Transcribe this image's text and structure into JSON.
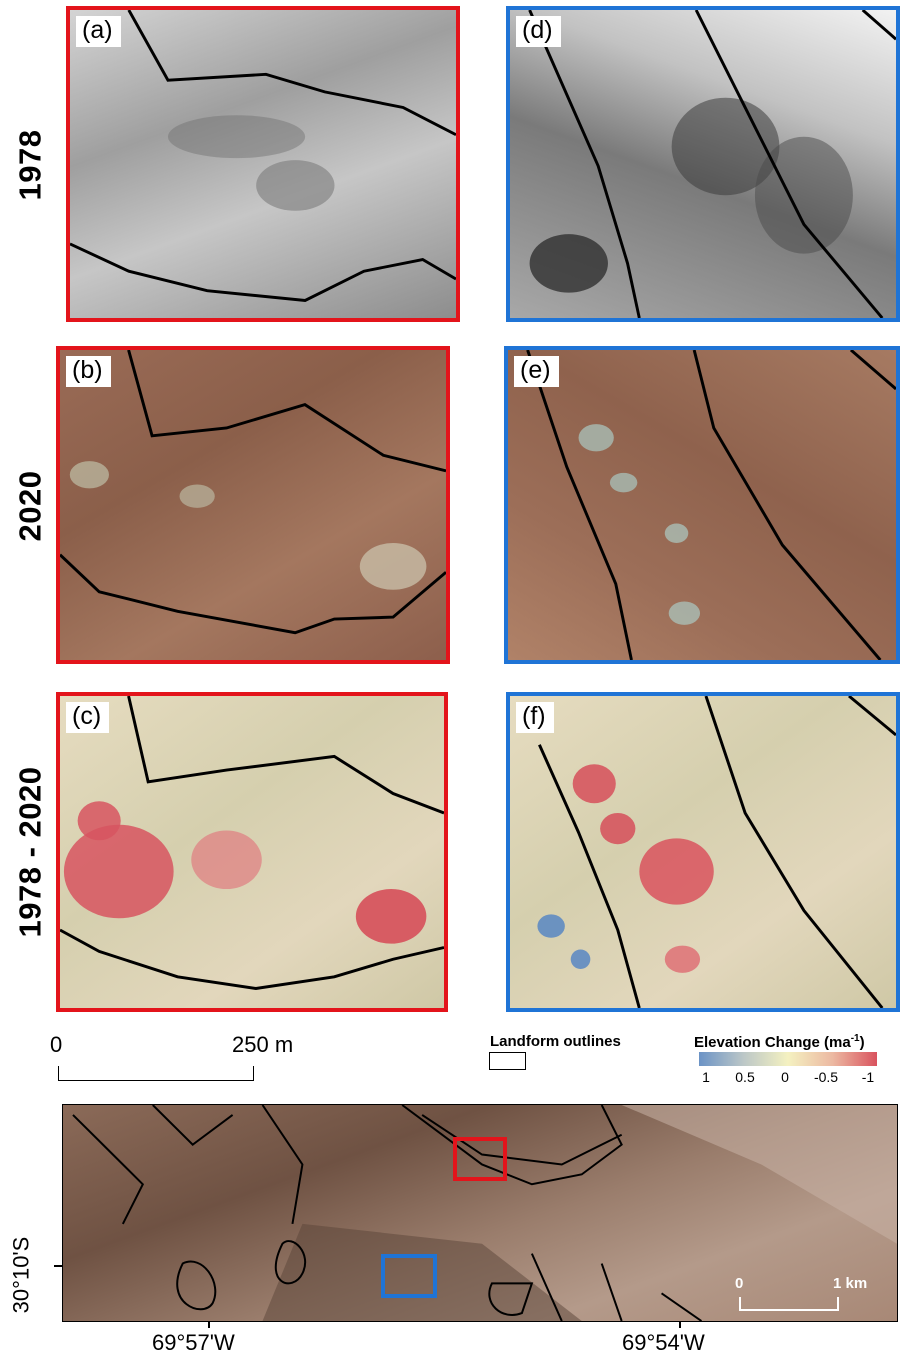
{
  "rows": [
    {
      "label": "1978"
    },
    {
      "label": "2020"
    },
    {
      "label": "1978 - 2020"
    }
  ],
  "panels": [
    {
      "letter": "(a)",
      "frame_color": "#e3141b"
    },
    {
      "letter": "(d)",
      "frame_color": "#1f74d6"
    },
    {
      "letter": "(b)",
      "frame_color": "#e3141b"
    },
    {
      "letter": "(e)",
      "frame_color": "#1f74d6"
    },
    {
      "letter": "(c)",
      "frame_color": "#e3141b"
    },
    {
      "letter": "(f)",
      "frame_color": "#1f74d6"
    }
  ],
  "scalebar": {
    "start": "0",
    "end": "250 m"
  },
  "legend": {
    "outlines_label": "Landform outlines",
    "elevation_title": "Elevation Change (ma",
    "elevation_unit_sup": "-1",
    "elevation_title_close": ")",
    "colorbar_ticks": [
      "1",
      "0.5",
      "0",
      "-0.5",
      "-1"
    ],
    "colorbar_colors": [
      "#6b93c6",
      "#f4f1c1",
      "#d9535e"
    ]
  },
  "overview": {
    "scale_start": "0",
    "scale_end": "1 km",
    "lat_label": "30°10'S",
    "lon_labels": [
      "69°57'W",
      "69°54'W"
    ]
  }
}
